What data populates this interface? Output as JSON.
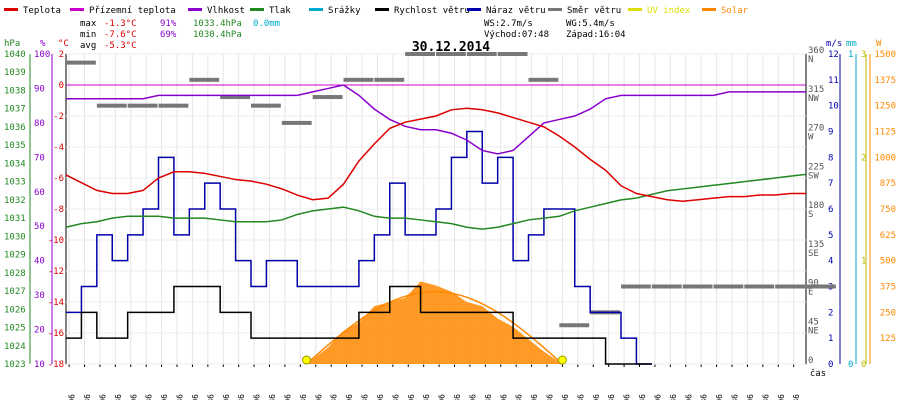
{
  "colors": {
    "teplota": "#dd0000",
    "pocitova": "#cc00cc",
    "vlhkost": "#8800cc",
    "tlak": "#228822",
    "srazky": "#00aacc",
    "rychlost": "#000000",
    "naraz": "#0000aa",
    "smer": "#777777",
    "uv": "#dddd00",
    "solar": "#ff8800"
  },
  "legend": [
    {
      "key": "teplota",
      "label": "Teplota"
    },
    {
      "key": "pocitova",
      "label": "Přízemní teplota"
    },
    {
      "key": "vlhkost",
      "label": "Vlhkost"
    },
    {
      "key": "tlak",
      "label": "Tlak"
    },
    {
      "key": "srazky",
      "label": "Srážky"
    },
    {
      "key": "rychlost",
      "label": "Rychlost větru"
    },
    {
      "key": "naraz",
      "label": "Náraz větru"
    },
    {
      "key": "smer",
      "label": "Směr větru"
    },
    {
      "key": "uv",
      "label": "UV index"
    },
    {
      "key": "solar",
      "label": "Solar"
    }
  ],
  "stats": {
    "max_label": "max",
    "max_t": "-1.3°C",
    "max_h": "91%",
    "max_p": "1033.4hPa",
    "max_r": "0.0mm",
    "min_label": "min",
    "min_t": "-7.6°C",
    "min_h": "69%",
    "min_p": "1030.4hPa",
    "avg_label": "avg",
    "avg_t": "-5.3°C",
    "ws": "WS:2.7m/s",
    "wg": "WG:5.4m/s",
    "sunrise": "Východ:07:48",
    "sunset": "Západ:16:04"
  },
  "title": "30.12.2014",
  "axis_units": {
    "hpa": "hPa",
    "pct": "%",
    "degc": "°C",
    "ms": "m/s",
    "mm": "mm",
    "w": "W",
    "time": "čas"
  },
  "chart_data": {
    "type": "line",
    "title": "30.12.2014",
    "x_ticks": [
      "00:06",
      "00:36",
      "01:06",
      "01:36",
      "02:06",
      "02:36",
      "03:06",
      "03:36",
      "04:06",
      "04:36",
      "05:06",
      "05:36",
      "06:06",
      "06:36",
      "07:06",
      "07:36",
      "08:06",
      "08:36",
      "09:06",
      "09:36",
      "10:06",
      "10:36",
      "11:06",
      "11:36",
      "12:06",
      "12:36",
      "13:06",
      "13:36",
      "14:06",
      "14:36",
      "15:06",
      "15:36",
      "16:06",
      "16:36",
      "17:06",
      "17:36",
      "18:06",
      "18:36",
      "19:06",
      "19:36",
      "20:06",
      "20:36",
      "21:06",
      "21:36",
      "22:06",
      "22:36",
      "23:06",
      "23:36"
    ],
    "y_axes": {
      "pressure_hpa": {
        "range": [
          1023,
          1040
        ],
        "ticks": [
          1023,
          1024,
          1025,
          1026,
          1027,
          1028,
          1029,
          1030,
          1031,
          1032,
          1033,
          1034,
          1035,
          1036,
          1037,
          1038,
          1039,
          1040
        ]
      },
      "humidity_pct": {
        "range": [
          10,
          100
        ],
        "ticks": [
          10,
          20,
          30,
          40,
          50,
          60,
          70,
          80,
          90,
          100
        ]
      },
      "temperature_c": {
        "range": [
          -18,
          2
        ],
        "ticks": [
          -18,
          -16,
          -14,
          -12,
          -10,
          -8,
          -6,
          -4,
          -2,
          0,
          2
        ]
      },
      "wind_dir_deg": {
        "ticks": [
          0,
          45,
          90,
          135,
          180,
          225,
          270,
          315,
          360
        ],
        "labels": [
          "",
          "NE",
          "E",
          "SE",
          "S",
          "SW",
          "W",
          "NW",
          "N"
        ]
      },
      "wind_speed_ms": {
        "range": [
          0,
          12
        ],
        "ticks": [
          0,
          1,
          2,
          3,
          4,
          5,
          6,
          7,
          8,
          9,
          10,
          11,
          12
        ]
      },
      "rain_mm": {
        "range": [
          0,
          1
        ],
        "ticks": [
          0,
          1
        ]
      },
      "uv": {
        "range": [
          0,
          3
        ],
        "ticks": [
          0,
          1,
          2,
          3
        ]
      },
      "solar_w": {
        "range": [
          0,
          1500
        ],
        "ticks": [
          0,
          125,
          250,
          375,
          500,
          625,
          750,
          875,
          1000,
          1125,
          1250,
          1375,
          1500
        ]
      }
    },
    "series": [
      {
        "name": "Teplota",
        "axis": "temperature_c",
        "x": [
          0,
          0.5,
          1,
          1.5,
          2,
          2.5,
          3,
          3.5,
          4,
          4.5,
          5,
          5.5,
          6,
          6.5,
          7,
          7.5,
          8,
          8.5,
          9,
          9.5,
          10,
          10.5,
          11,
          11.5,
          12,
          12.5,
          13,
          13.5,
          14,
          14.5,
          15,
          15.5,
          16,
          16.5,
          17,
          17.5,
          18,
          18.5,
          19,
          19.5,
          20,
          20.5,
          21,
          21.5,
          22,
          22.5,
          23,
          23.5,
          24
        ],
        "y": [
          -5.8,
          -6.3,
          -6.8,
          -7.0,
          -7.0,
          -6.8,
          -6.0,
          -5.6,
          -5.6,
          -5.7,
          -5.9,
          -6.1,
          -6.2,
          -6.4,
          -6.7,
          -7.1,
          -7.4,
          -7.3,
          -6.4,
          -4.9,
          -3.8,
          -2.8,
          -2.4,
          -2.2,
          -2.0,
          -1.6,
          -1.5,
          -1.6,
          -1.8,
          -2.1,
          -2.4,
          -2.7,
          -3.3,
          -4.0,
          -4.8,
          -5.5,
          -6.5,
          -7.0,
          -7.2,
          -7.4,
          -7.5,
          -7.4,
          -7.3,
          -7.2,
          -7.2,
          -7.1,
          -7.1,
          -7.0,
          -7.0
        ]
      },
      {
        "name": "Vlhkost",
        "axis": "humidity_pct",
        "x": [
          0,
          0.5,
          1,
          1.5,
          2,
          2.5,
          3,
          3.5,
          4,
          4.5,
          5,
          5.5,
          6,
          6.5,
          7,
          7.5,
          8,
          8.5,
          9,
          9.5,
          10,
          10.5,
          11,
          11.5,
          12,
          12.5,
          13,
          13.5,
          14,
          14.5,
          15,
          15.5,
          16,
          16.5,
          17,
          17.5,
          18,
          18.5,
          19,
          19.5,
          20,
          20.5,
          21,
          21.5,
          22,
          22.5,
          23,
          23.5,
          24
        ],
        "y": [
          87,
          87,
          87,
          87,
          87,
          87,
          88,
          88,
          88,
          88,
          88,
          88,
          88,
          88,
          88,
          88,
          89,
          90,
          91,
          88,
          84,
          81,
          79,
          78,
          78,
          77,
          75,
          72,
          71,
          72,
          76,
          80,
          81,
          82,
          84,
          87,
          88,
          88,
          88,
          88,
          88,
          88,
          88,
          89,
          89,
          89,
          89,
          89,
          89
        ]
      },
      {
        "name": "Tlak",
        "axis": "pressure_hpa",
        "x": [
          0,
          0.5,
          1,
          1.5,
          2,
          2.5,
          3,
          3.5,
          4,
          4.5,
          5,
          5.5,
          6,
          6.5,
          7,
          7.5,
          8,
          8.5,
          9,
          9.5,
          10,
          10.5,
          11,
          11.5,
          12,
          12.5,
          13,
          13.5,
          14,
          14.5,
          15,
          15.5,
          16,
          16.5,
          17,
          17.5,
          18,
          18.5,
          19,
          19.5,
          20,
          20.5,
          21,
          21.5,
          22,
          22.5,
          23,
          23.5,
          24
        ],
        "y": [
          1030.5,
          1030.7,
          1030.8,
          1031.0,
          1031.1,
          1031.1,
          1031.1,
          1031.0,
          1031.0,
          1031.0,
          1030.9,
          1030.8,
          1030.8,
          1030.8,
          1030.9,
          1031.2,
          1031.4,
          1031.5,
          1031.6,
          1031.4,
          1031.1,
          1031.0,
          1031.0,
          1030.9,
          1030.8,
          1030.7,
          1030.5,
          1030.4,
          1030.5,
          1030.7,
          1030.9,
          1031.0,
          1031.1,
          1031.4,
          1031.6,
          1031.8,
          1032.0,
          1032.1,
          1032.3,
          1032.5,
          1032.6,
          1032.7,
          1032.8,
          1032.9,
          1033.0,
          1033.1,
          1033.2,
          1033.3,
          1033.4
        ]
      },
      {
        "name": "Rychlost větru",
        "axis": "wind_speed_ms",
        "x": [
          0,
          0.5,
          1,
          1.5,
          2,
          2.5,
          3,
          3.5,
          4,
          4.5,
          5,
          5.5,
          6,
          6.5,
          7,
          7.5,
          8,
          8.5,
          9,
          9.5,
          10,
          10.5,
          11,
          11.5,
          12,
          12.5,
          13,
          13.5,
          14,
          14.5,
          15,
          15.5,
          16,
          16.5,
          17,
          17.5,
          18,
          18.5,
          19
        ],
        "y": [
          1,
          2,
          1,
          1,
          2,
          2,
          2,
          3,
          3,
          3,
          2,
          2,
          1,
          1,
          1,
          1,
          1,
          1,
          1,
          2,
          2,
          3,
          3,
          2,
          2,
          2,
          2,
          2,
          2,
          1,
          1,
          1,
          1,
          1,
          1,
          0,
          0,
          0,
          0
        ]
      },
      {
        "name": "Náraz větru",
        "axis": "wind_speed_ms",
        "x": [
          0,
          0.5,
          1,
          1.5,
          2,
          2.5,
          3,
          3.5,
          4,
          4.5,
          5,
          5.5,
          6,
          6.5,
          7,
          7.5,
          8,
          8.5,
          9,
          9.5,
          10,
          10.5,
          11,
          11.5,
          12,
          12.5,
          13,
          13.5,
          14,
          14.5,
          15,
          15.5,
          16,
          16.5,
          17,
          17.5,
          18,
          18.5,
          19
        ],
        "y": [
          2,
          3,
          5,
          4,
          5,
          6,
          8,
          5,
          6,
          7,
          6,
          4,
          3,
          4,
          4,
          3,
          3,
          3,
          3,
          4,
          5,
          7,
          5,
          5,
          6,
          8,
          9,
          7,
          8,
          4,
          5,
          6,
          6,
          3,
          2,
          2,
          1,
          0,
          0
        ]
      },
      {
        "name": "Směr větru",
        "axis": "wind_dir_deg",
        "x": [
          0,
          1,
          2,
          3,
          4,
          5,
          6,
          7,
          8,
          9,
          10,
          11,
          12,
          13,
          14,
          15,
          16,
          17,
          18,
          19,
          20,
          21,
          22,
          23,
          24
        ],
        "y": [
          350,
          300,
          300,
          300,
          330,
          310,
          300,
          280,
          310,
          330,
          330,
          360,
          360,
          360,
          360,
          330,
          45,
          60,
          90,
          90,
          90,
          90,
          90,
          90,
          90
        ]
      },
      {
        "name": "Solar",
        "axis": "solar_w",
        "x": [
          7.8,
          8.5,
          9,
          9.5,
          10,
          10.5,
          11,
          11.5,
          12,
          12.5,
          13,
          13.5,
          14,
          14.5,
          15,
          15.5,
          16.1
        ],
        "y": [
          0,
          80,
          160,
          200,
          280,
          300,
          320,
          400,
          380,
          350,
          300,
          280,
          220,
          180,
          120,
          60,
          0
        ]
      }
    ]
  }
}
